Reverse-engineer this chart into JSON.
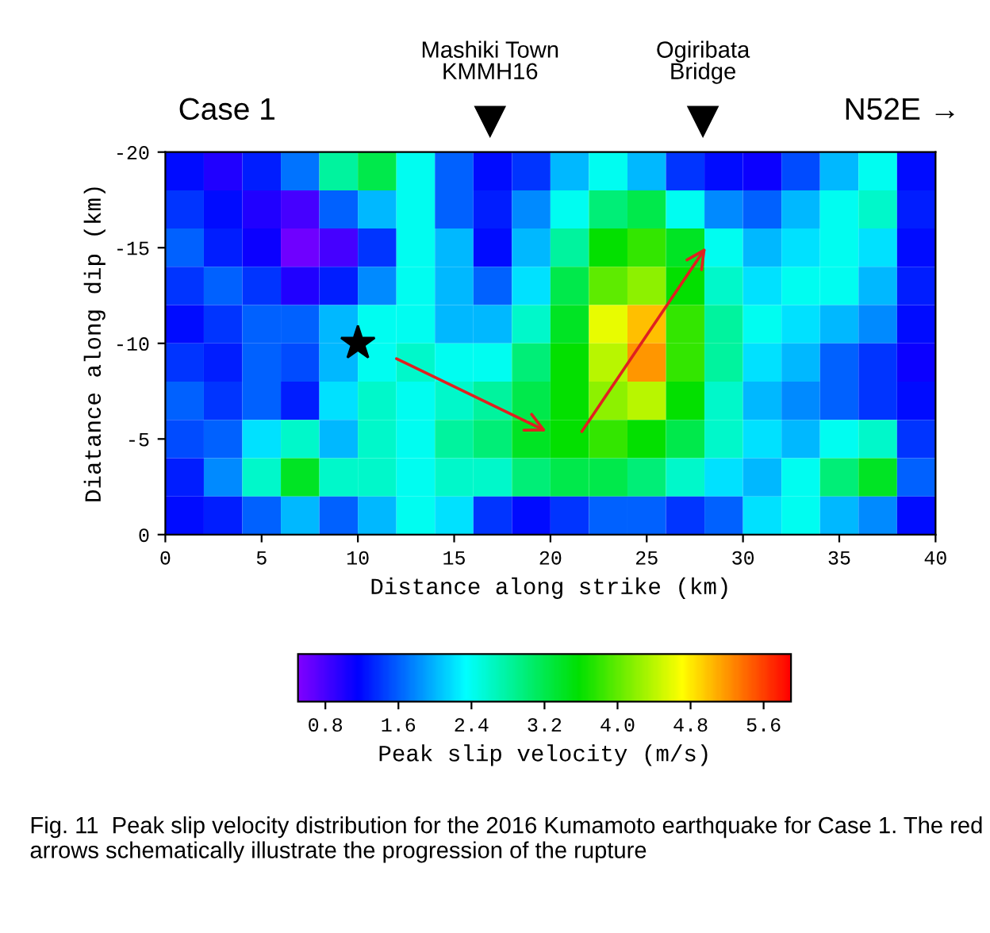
{
  "chart_data": {
    "type": "heatmap",
    "xlabel": "Distance along strike (km)",
    "ylabel": "Diatance along dip (km)",
    "clabel": "Peak slip velocity (m/s)",
    "xlim": [
      0,
      40
    ],
    "ylim": [
      0,
      -20
    ],
    "xticks": [
      0,
      5,
      10,
      15,
      20,
      25,
      30,
      35,
      40
    ],
    "yticks": [
      -20,
      -15,
      -10,
      -5,
      0
    ],
    "clim": [
      0.5,
      5.9
    ],
    "cticks": [
      0.8,
      1.6,
      2.4,
      3.2,
      {
        "value": 4,
        "label": "4.0"
      },
      4.8,
      5.6
    ],
    "cells": [
      [
        1.2,
        1.0,
        1.3,
        1.7,
        2.8,
        3.2,
        2.4,
        1.6,
        1.2,
        1.4,
        2.0,
        2.4,
        2.0,
        1.4,
        1.2,
        1.1,
        1.5,
        2.0,
        2.4,
        1.2
      ],
      [
        1.4,
        1.2,
        1.0,
        0.8,
        1.6,
        2.0,
        2.4,
        1.6,
        1.3,
        1.8,
        2.4,
        3.0,
        3.2,
        2.4,
        1.8,
        1.6,
        2.0,
        2.4,
        2.6,
        1.3
      ],
      [
        1.6,
        1.3,
        1.1,
        0.6,
        0.8,
        1.4,
        2.4,
        2.0,
        1.2,
        2.0,
        2.8,
        3.6,
        3.8,
        3.4,
        2.4,
        2.0,
        2.2,
        2.4,
        2.2,
        1.2
      ],
      [
        1.4,
        1.6,
        1.4,
        1.0,
        1.3,
        1.8,
        2.4,
        2.0,
        1.6,
        2.2,
        3.2,
        4.0,
        4.2,
        3.6,
        2.6,
        2.2,
        2.4,
        2.4,
        2.0,
        1.3
      ],
      [
        1.2,
        1.4,
        1.6,
        1.6,
        2.0,
        2.4,
        2.4,
        2.0,
        2.0,
        2.6,
        3.4,
        4.6,
        5.0,
        3.8,
        2.8,
        2.4,
        2.2,
        2.0,
        1.8,
        1.2
      ],
      [
        1.4,
        1.3,
        1.6,
        1.5,
        2.0,
        2.4,
        2.6,
        2.4,
        2.4,
        3.0,
        3.6,
        4.4,
        5.2,
        3.8,
        2.8,
        2.2,
        2.0,
        1.6,
        1.4,
        1.1
      ],
      [
        1.6,
        1.4,
        1.6,
        1.3,
        2.2,
        2.6,
        2.4,
        2.6,
        2.8,
        3.2,
        3.6,
        4.2,
        4.4,
        3.6,
        2.6,
        2.0,
        1.8,
        1.6,
        1.4,
        1.2
      ],
      [
        1.5,
        1.6,
        2.2,
        2.6,
        2.0,
        2.6,
        2.4,
        2.8,
        3.0,
        3.4,
        3.6,
        3.8,
        3.6,
        3.2,
        2.6,
        2.2,
        2.0,
        2.4,
        2.6,
        1.4
      ],
      [
        1.3,
        1.8,
        2.6,
        3.4,
        2.6,
        2.6,
        2.4,
        2.6,
        2.6,
        3.0,
        3.2,
        3.2,
        3.0,
        2.6,
        2.2,
        2.0,
        2.4,
        3.0,
        3.4,
        1.6
      ],
      [
        1.2,
        1.3,
        1.6,
        2.0,
        1.6,
        2.0,
        2.4,
        2.2,
        1.4,
        1.2,
        1.4,
        1.6,
        1.6,
        1.4,
        1.6,
        2.2,
        2.4,
        2.0,
        1.8,
        1.2
      ]
    ],
    "annotations": [
      "Case 1",
      "Mashiki Town\nKMMH16",
      "Ogiribata\nBridge",
      "N52E →",
      "Fig. 11  Peak slip velocity distribution for the 2016 Kumamoto earthquake for Case 1. The red arrows schematically illustrate the progression of the rupture"
    ]
  }
}
